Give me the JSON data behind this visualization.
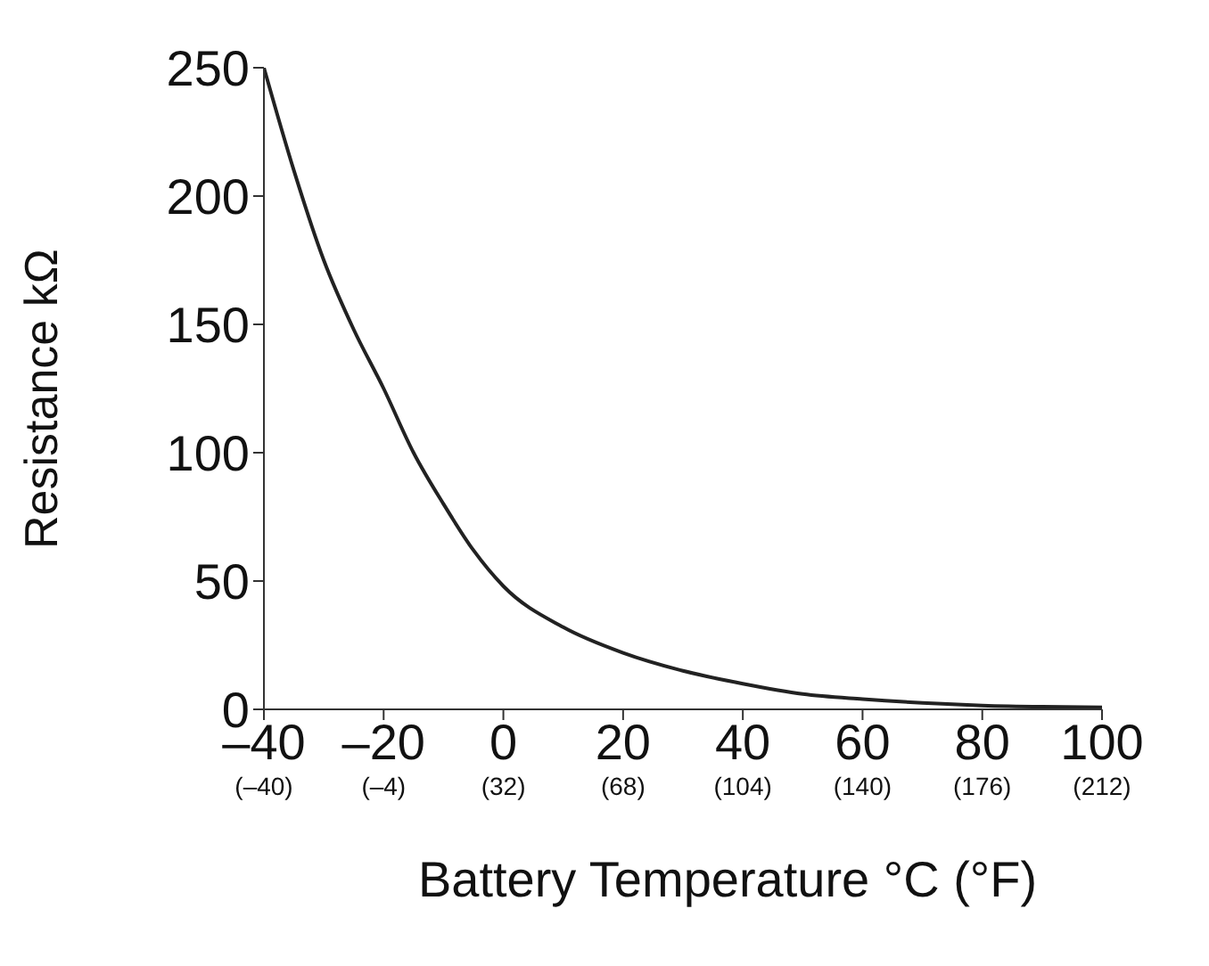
{
  "chart_data": {
    "type": "line",
    "xlabel": "Battery Temperature °C (°F)",
    "ylabel": "Resistance kΩ",
    "x": [
      -40,
      -35,
      -30,
      -25,
      -20,
      -15,
      -10,
      -5,
      0,
      10,
      20,
      30,
      40,
      50,
      60,
      70,
      80,
      90,
      100
    ],
    "series": [
      {
        "color": "#222222",
        "values": [
          250,
          210,
          175,
          148,
          125,
          100,
          80,
          62,
          48,
          32,
          22,
          15,
          10,
          6,
          4,
          2.5,
          1.5,
          1,
          0.8
        ]
      }
    ],
    "xlim": [
      -40,
      100
    ],
    "ylim": [
      0,
      250
    ],
    "xticks": [
      {
        "value": -40,
        "label": "–40"
      },
      {
        "value": -20,
        "label": "–20"
      },
      0,
      20,
      40,
      60,
      80,
      100
    ],
    "x2lim": [
      -40,
      212
    ],
    "x2ticks": [
      {
        "value": -40,
        "label": "(–40)"
      },
      {
        "value": -4,
        "label": "(–4)"
      },
      {
        "value": 32,
        "label": "(32)"
      },
      {
        "value": 68,
        "label": "(68)"
      },
      {
        "value": 104,
        "label": "(104)"
      },
      {
        "value": 140,
        "label": "(140)"
      },
      {
        "value": 176,
        "label": "(176)"
      },
      {
        "value": 212,
        "label": "(212)"
      }
    ],
    "yticks": [
      0,
      50,
      100,
      150,
      200,
      250
    ],
    "grid": false,
    "legend": false,
    "marker": "none",
    "line_style": "solid"
  }
}
